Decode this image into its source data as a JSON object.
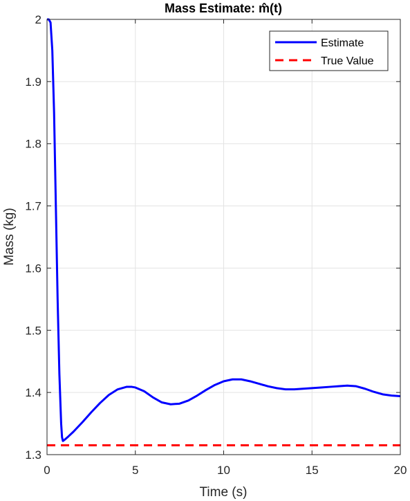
{
  "chart_data": {
    "type": "line",
    "title": "Mass Estimate: m̂(t)",
    "xlabel": "Time (s)",
    "ylabel": "Mass (kg)",
    "xlim": [
      0,
      20
    ],
    "ylim": [
      1.3,
      2.0
    ],
    "xticks": [
      0,
      5,
      10,
      15,
      20
    ],
    "xtick_labels": [
      "0",
      "5",
      "10",
      "15",
      "20"
    ],
    "yticks": [
      1.3,
      1.4,
      1.5,
      1.6,
      1.7,
      1.8,
      1.9,
      2.0
    ],
    "ytick_labels": [
      "1.3",
      "1.4",
      "1.5",
      "1.6",
      "1.7",
      "1.8",
      "1.9",
      "2"
    ],
    "grid": true,
    "legend_position": "top-right",
    "series": [
      {
        "name": "Estimate",
        "style": "solid",
        "color": "#0000ff",
        "x": [
          0,
          0.1,
          0.2,
          0.3,
          0.4,
          0.5,
          0.6,
          0.7,
          0.8,
          0.85,
          0.9,
          1.0,
          1.2,
          1.5,
          2.0,
          2.5,
          3.0,
          3.5,
          4.0,
          4.5,
          4.8,
          5.0,
          5.5,
          6.0,
          6.5,
          7.0,
          7.5,
          8.0,
          8.5,
          9.0,
          9.5,
          10.0,
          10.5,
          11.0,
          11.5,
          12.0,
          12.5,
          13.0,
          13.5,
          14.0,
          14.5,
          15.0,
          15.5,
          16.0,
          16.5,
          17.0,
          17.5,
          18.0,
          18.5,
          19.0,
          19.5,
          20.0
        ],
        "y": [
          2.0,
          2.0,
          1.995,
          1.95,
          1.85,
          1.7,
          1.55,
          1.43,
          1.35,
          1.328,
          1.322,
          1.324,
          1.329,
          1.337,
          1.352,
          1.368,
          1.383,
          1.396,
          1.405,
          1.409,
          1.409,
          1.408,
          1.402,
          1.392,
          1.384,
          1.381,
          1.382,
          1.387,
          1.395,
          1.404,
          1.412,
          1.418,
          1.421,
          1.421,
          1.418,
          1.414,
          1.41,
          1.407,
          1.405,
          1.405,
          1.406,
          1.407,
          1.408,
          1.409,
          1.41,
          1.411,
          1.41,
          1.406,
          1.401,
          1.397,
          1.395,
          1.394
        ]
      },
      {
        "name": "True Value",
        "style": "dashed",
        "color": "#ff0000",
        "x": [
          0,
          20
        ],
        "y": [
          1.315,
          1.315
        ]
      }
    ]
  }
}
